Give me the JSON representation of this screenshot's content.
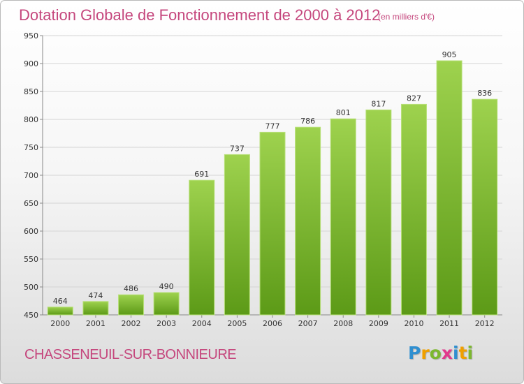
{
  "header": {
    "title": "Dotation Globale de Fonctionnement de 2000 à 2012",
    "unit_note": "(en milliers d'€)"
  },
  "footer": {
    "commune": "CHASSENEUIL-SUR-BONNIEURE",
    "logo_letters": [
      {
        "char": "P",
        "color": "#2f8fd0"
      },
      {
        "char": "r",
        "color": "#f0a000"
      },
      {
        "char": "o",
        "color": "#7cb82f"
      },
      {
        "char": "x",
        "color": "#e2388c"
      },
      {
        "char": "i",
        "color": "#2f8fd0"
      },
      {
        "char": "t",
        "color": "#f0a000"
      },
      {
        "char": "i",
        "color": "#7cb82f"
      }
    ]
  },
  "colors": {
    "bar_light": "#9ed24e",
    "bar_dark": "#5c9a17",
    "title": "#c5477d",
    "grid": "#d4d4d4"
  },
  "chart_data": {
    "type": "bar",
    "title": "Dotation Globale de Fonctionnement de 2000 à 2012",
    "subtitle": "(en milliers d'€)",
    "categories": [
      "2000",
      "2001",
      "2002",
      "2003",
      "2004",
      "2005",
      "2006",
      "2007",
      "2008",
      "2009",
      "2010",
      "2011",
      "2012"
    ],
    "values": [
      464,
      474,
      486,
      490,
      691,
      737,
      777,
      786,
      801,
      817,
      827,
      905,
      836
    ],
    "ylim": [
      450,
      950
    ],
    "yticks": [
      450,
      500,
      550,
      600,
      650,
      700,
      750,
      800,
      850,
      900,
      950
    ],
    "grid": true,
    "legend": "none"
  }
}
